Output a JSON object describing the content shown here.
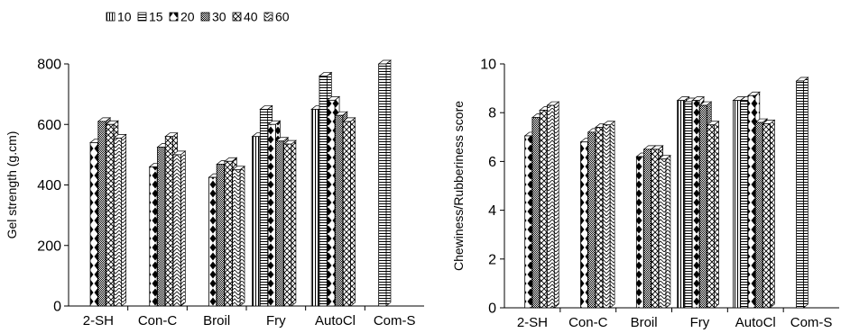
{
  "legend": {
    "entries": [
      "10",
      "15",
      "20",
      "30",
      "40",
      "60"
    ],
    "position": "top-left"
  },
  "chart_data": [
    {
      "type": "bar",
      "title": "",
      "xlabel": "",
      "ylabel": "Gel strength (g.cm)",
      "ylim": [
        0,
        800
      ],
      "yticks": [
        0,
        200,
        400,
        600,
        800
      ],
      "grid": false,
      "categories": [
        "2-SH",
        "Con-C",
        "Broil",
        "Fry",
        "AutoCl",
        "Com-S"
      ],
      "series": [
        {
          "name": "10",
          "values": [
            null,
            null,
            null,
            560,
            650,
            null
          ]
        },
        {
          "name": "15",
          "values": [
            null,
            null,
            null,
            650,
            760,
            800
          ]
        },
        {
          "name": "20",
          "values": [
            540,
            460,
            425,
            600,
            680,
            null
          ]
        },
        {
          "name": "30",
          "values": [
            610,
            525,
            468,
            545,
            630,
            null
          ]
        },
        {
          "name": "40",
          "values": [
            600,
            560,
            478,
            535,
            610,
            null
          ]
        },
        {
          "name": "60",
          "values": [
            555,
            500,
            450,
            null,
            null,
            null
          ]
        }
      ]
    },
    {
      "type": "bar",
      "title": "",
      "xlabel": "",
      "ylabel": "Chewiness/Rubberiness score",
      "ylim": [
        0,
        10
      ],
      "yticks": [
        0,
        2,
        4,
        6,
        8,
        10
      ],
      "grid": false,
      "categories": [
        "2-SH",
        "Con-C",
        "Broil",
        "Fry",
        "AutoCl",
        "Com-S"
      ],
      "series": [
        {
          "name": "10",
          "values": [
            null,
            null,
            null,
            8.5,
            8.5,
            null
          ]
        },
        {
          "name": "15",
          "values": [
            null,
            null,
            null,
            8.45,
            8.5,
            9.3
          ]
        },
        {
          "name": "20",
          "values": [
            7.05,
            6.8,
            6.2,
            8.5,
            8.7,
            null
          ]
        },
        {
          "name": "30",
          "values": [
            7.8,
            7.2,
            6.5,
            8.3,
            7.6,
            null
          ]
        },
        {
          "name": "40",
          "values": [
            8.1,
            7.4,
            6.5,
            7.5,
            7.55,
            null
          ]
        },
        {
          "name": "60",
          "values": [
            8.3,
            7.5,
            6.1,
            null,
            null,
            null
          ]
        }
      ]
    }
  ]
}
